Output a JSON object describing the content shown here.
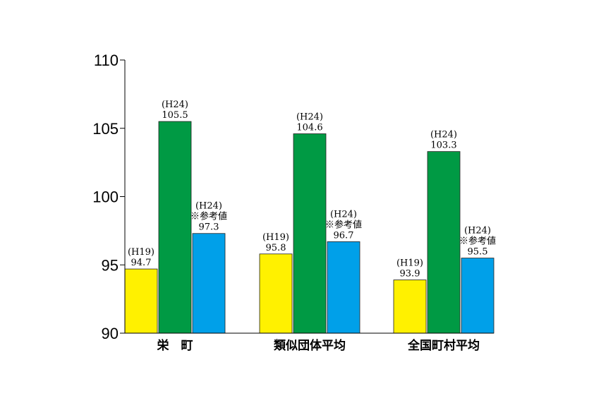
{
  "chart_data": {
    "type": "bar",
    "categories": [
      "栄　町",
      "類似団体平均",
      "全国町村平均"
    ],
    "ylim": [
      90,
      110
    ],
    "yticks": [
      90,
      95,
      100,
      105,
      110
    ],
    "title": "",
    "xlabel": "",
    "ylabel": "",
    "grid": false,
    "legend": "none",
    "series": [
      {
        "values": [
          94.7,
          95.8,
          93.9
        ],
        "color": "#fff100",
        "labels": [
          [
            "(H19)",
            "94.7"
          ],
          [
            "(H19)",
            "95.8"
          ],
          [
            "(H19)",
            "93.9"
          ]
        ]
      },
      {
        "values": [
          105.5,
          104.6,
          103.3
        ],
        "color": "#009a44",
        "labels": [
          [
            "(H24)",
            "105.5"
          ],
          [
            "(H24)",
            "104.6"
          ],
          [
            "(H24)",
            "103.3"
          ]
        ]
      },
      {
        "values": [
          97.3,
          96.7,
          95.5
        ],
        "color": "#00a0e9",
        "labels": [
          [
            "(H24)",
            "※参考値",
            "97.3"
          ],
          [
            "(H24)",
            "※参考値",
            "96.7"
          ],
          [
            "(H24)",
            "※参考値",
            "95.5"
          ]
        ]
      }
    ]
  }
}
